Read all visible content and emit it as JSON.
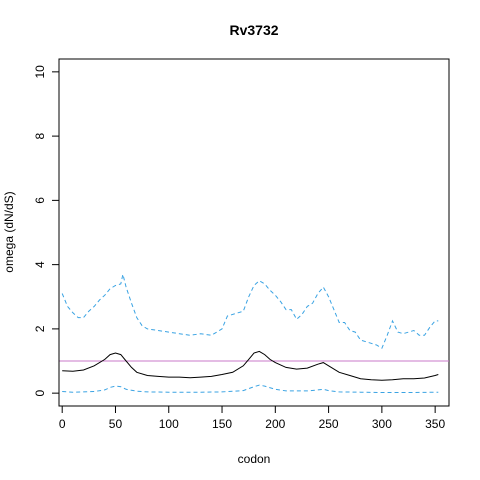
{
  "chart_data": {
    "type": "line",
    "title": "Rv3732",
    "xlabel": "codon",
    "ylabel": "omega (dN/dS)",
    "xlim": [
      -3,
      363
    ],
    "ylim": [
      -0.4,
      10.4
    ],
    "x_ticks": [
      0,
      50,
      100,
      150,
      200,
      250,
      300,
      350
    ],
    "y_ticks": [
      0,
      2,
      4,
      6,
      8,
      10
    ],
    "grid": false,
    "legend": "none",
    "reference_line": {
      "y": 1,
      "color": "#c979c9"
    },
    "series": [
      {
        "style": "dashed",
        "color": "#3aa3e3",
        "points": [
          [
            0,
            3.1
          ],
          [
            5,
            2.7
          ],
          [
            10,
            2.5
          ],
          [
            15,
            2.35
          ],
          [
            20,
            2.35
          ],
          [
            25,
            2.55
          ],
          [
            30,
            2.7
          ],
          [
            35,
            2.9
          ],
          [
            40,
            3.05
          ],
          [
            45,
            3.25
          ],
          [
            50,
            3.35
          ],
          [
            55,
            3.4
          ],
          [
            57,
            3.7
          ],
          [
            60,
            3.3
          ],
          [
            65,
            2.8
          ],
          [
            70,
            2.35
          ],
          [
            75,
            2.1
          ],
          [
            80,
            2.0
          ],
          [
            90,
            1.95
          ],
          [
            100,
            1.9
          ],
          [
            110,
            1.85
          ],
          [
            120,
            1.8
          ],
          [
            130,
            1.85
          ],
          [
            140,
            1.8
          ],
          [
            145,
            1.9
          ],
          [
            150,
            2.0
          ],
          [
            155,
            2.4
          ],
          [
            165,
            2.5
          ],
          [
            170,
            2.55
          ],
          [
            175,
            3.0
          ],
          [
            180,
            3.35
          ],
          [
            185,
            3.5
          ],
          [
            190,
            3.4
          ],
          [
            195,
            3.2
          ],
          [
            200,
            3.05
          ],
          [
            205,
            2.85
          ],
          [
            210,
            2.6
          ],
          [
            215,
            2.6
          ],
          [
            220,
            2.3
          ],
          [
            225,
            2.45
          ],
          [
            230,
            2.7
          ],
          [
            235,
            2.8
          ],
          [
            240,
            3.1
          ],
          [
            245,
            3.3
          ],
          [
            250,
            3.0
          ],
          [
            255,
            2.6
          ],
          [
            260,
            2.2
          ],
          [
            265,
            2.2
          ],
          [
            270,
            1.95
          ],
          [
            275,
            1.9
          ],
          [
            280,
            1.65
          ],
          [
            285,
            1.6
          ],
          [
            290,
            1.55
          ],
          [
            295,
            1.5
          ],
          [
            300,
            1.4
          ],
          [
            305,
            1.8
          ],
          [
            310,
            2.25
          ],
          [
            315,
            1.9
          ],
          [
            320,
            1.85
          ],
          [
            325,
            1.9
          ],
          [
            330,
            1.95
          ],
          [
            335,
            1.8
          ],
          [
            340,
            1.8
          ],
          [
            345,
            2.05
          ],
          [
            350,
            2.25
          ],
          [
            353,
            2.25
          ]
        ]
      },
      {
        "style": "solid",
        "color": "#000000",
        "points": [
          [
            0,
            0.7
          ],
          [
            10,
            0.68
          ],
          [
            20,
            0.72
          ],
          [
            30,
            0.85
          ],
          [
            40,
            1.05
          ],
          [
            45,
            1.2
          ],
          [
            50,
            1.25
          ],
          [
            55,
            1.2
          ],
          [
            60,
            1.0
          ],
          [
            65,
            0.8
          ],
          [
            70,
            0.65
          ],
          [
            80,
            0.55
          ],
          [
            90,
            0.52
          ],
          [
            100,
            0.5
          ],
          [
            110,
            0.5
          ],
          [
            120,
            0.48
          ],
          [
            130,
            0.5
          ],
          [
            140,
            0.52
          ],
          [
            150,
            0.58
          ],
          [
            160,
            0.65
          ],
          [
            170,
            0.85
          ],
          [
            175,
            1.05
          ],
          [
            180,
            1.25
          ],
          [
            185,
            1.3
          ],
          [
            190,
            1.2
          ],
          [
            195,
            1.05
          ],
          [
            200,
            0.95
          ],
          [
            210,
            0.8
          ],
          [
            220,
            0.75
          ],
          [
            230,
            0.78
          ],
          [
            240,
            0.9
          ],
          [
            245,
            0.95
          ],
          [
            250,
            0.85
          ],
          [
            260,
            0.65
          ],
          [
            270,
            0.55
          ],
          [
            280,
            0.45
          ],
          [
            290,
            0.42
          ],
          [
            300,
            0.4
          ],
          [
            310,
            0.42
          ],
          [
            320,
            0.45
          ],
          [
            330,
            0.45
          ],
          [
            340,
            0.47
          ],
          [
            350,
            0.55
          ],
          [
            353,
            0.58
          ]
        ]
      },
      {
        "style": "dashed",
        "color": "#3aa3e3",
        "points": [
          [
            0,
            0.05
          ],
          [
            10,
            0.03
          ],
          [
            20,
            0.04
          ],
          [
            30,
            0.05
          ],
          [
            40,
            0.1
          ],
          [
            45,
            0.18
          ],
          [
            50,
            0.22
          ],
          [
            55,
            0.2
          ],
          [
            60,
            0.12
          ],
          [
            70,
            0.06
          ],
          [
            80,
            0.04
          ],
          [
            100,
            0.03
          ],
          [
            130,
            0.03
          ],
          [
            150,
            0.04
          ],
          [
            170,
            0.08
          ],
          [
            180,
            0.2
          ],
          [
            185,
            0.25
          ],
          [
            190,
            0.22
          ],
          [
            200,
            0.12
          ],
          [
            210,
            0.07
          ],
          [
            230,
            0.07
          ],
          [
            240,
            0.1
          ],
          [
            245,
            0.12
          ],
          [
            250,
            0.08
          ],
          [
            260,
            0.04
          ],
          [
            280,
            0.03
          ],
          [
            300,
            0.02
          ],
          [
            330,
            0.02
          ],
          [
            353,
            0.03
          ]
        ]
      }
    ]
  }
}
